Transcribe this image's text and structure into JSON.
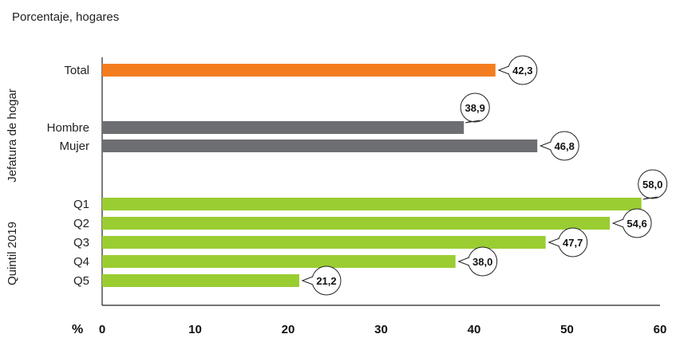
{
  "chart_data": {
    "type": "bar",
    "orientation": "horizontal",
    "subtitle": "Porcentaje, hogares",
    "xlabel": "%",
    "xlim": [
      0,
      60
    ],
    "xticks": [
      0,
      10,
      20,
      30,
      40,
      50,
      60
    ],
    "grid": false,
    "categories": [
      "Total",
      "Hombre",
      "Mujer",
      "Q1",
      "Q2",
      "Q3",
      "Q4",
      "Q5"
    ],
    "values": [
      42.3,
      38.9,
      46.8,
      58.0,
      54.6,
      47.7,
      38.0,
      21.2
    ],
    "value_labels": [
      "42,3",
      "38,9",
      "46,8",
      "58,0",
      "54,6",
      "47,7",
      "38,0",
      "21,2"
    ],
    "bar_colors": [
      "#f47d20",
      "#6d6e71",
      "#6d6e71",
      "#9acd32",
      "#9acd32",
      "#9acd32",
      "#9acd32",
      "#9acd32"
    ],
    "groups": [
      {
        "label": "Jefatura de hogar",
        "categories": [
          "Hombre",
          "Mujer"
        ]
      },
      {
        "label": "Quintil 2019",
        "categories": [
          "Q1",
          "Q2",
          "Q3",
          "Q4",
          "Q5"
        ]
      }
    ]
  }
}
